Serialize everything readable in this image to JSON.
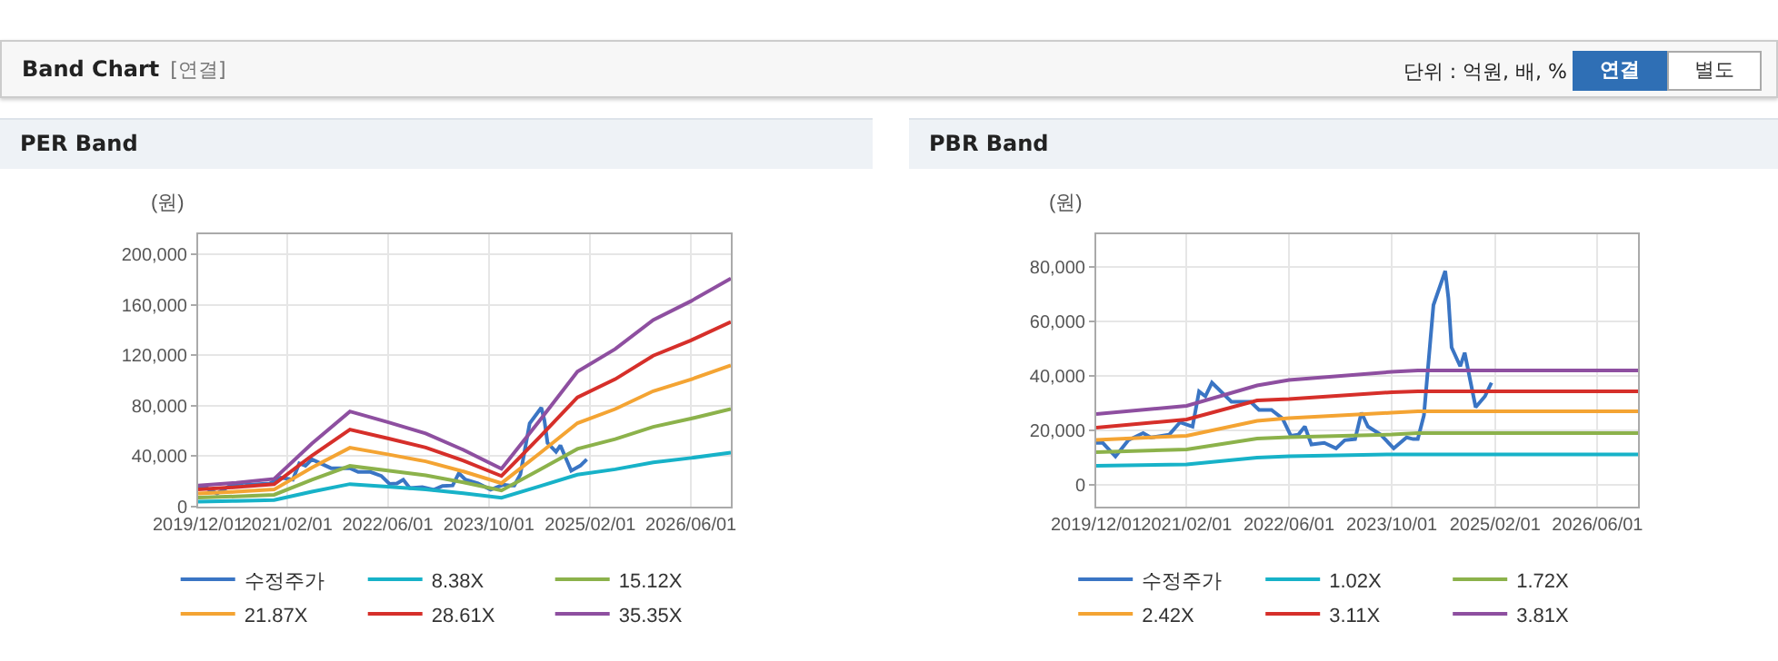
{
  "chart_data": [
    {
      "type": "line",
      "title": "PER Band",
      "ylabel": "(원)",
      "annotations": [
        "Band Chart",
        "[연결]",
        "단위 : 억원, 배, %",
        "연결",
        "별도"
      ],
      "xlim": [
        "2019-12-01",
        "2026-12-10"
      ],
      "xticks": [
        {
          "value": "2019-12-01",
          "label": "2019/12/01"
        },
        {
          "value": "2021-02-01",
          "label": "2021/02/01"
        },
        {
          "value": "2022-06-01",
          "label": "2022/06/01"
        },
        {
          "value": "2023-10-01",
          "label": "2023/10/01"
        },
        {
          "value": "2025-02-01",
          "label": "2025/02/01"
        },
        {
          "value": "2026-06-01",
          "label": "2026/06/01"
        }
      ],
      "ylim": [
        0,
        216000
      ],
      "yticks": [
        {
          "value": 0,
          "label": "0"
        },
        {
          "value": 40000,
          "label": "40,000"
        },
        {
          "value": 80000,
          "label": "80,000"
        },
        {
          "value": 120000,
          "label": "120,000"
        },
        {
          "value": 160000,
          "label": "160,000"
        },
        {
          "value": 200000,
          "label": "200,000"
        }
      ],
      "grid": true,
      "legend": "bottom",
      "x": [
        "2019-12-01",
        "2020-06-01",
        "2020-12-01",
        "2021-06-01",
        "2021-12-01",
        "2022-06-01",
        "2022-12-01",
        "2023-06-01",
        "2023-12-01",
        "2024-06-01",
        "2024-12-01",
        "2025-06-01",
        "2025-12-01",
        "2026-06-01",
        "2026-12-10"
      ],
      "series": [
        {
          "name": "수정주가",
          "color": "#3a75c4",
          "x": [
            "2019-12-01",
            "2020-01-01",
            "2020-03-01",
            "2020-05-01",
            "2020-07-10",
            "2020-08-15",
            "2020-11-10",
            "2021-01-01",
            "2021-03-01",
            "2021-04-01",
            "2021-05-01",
            "2021-06-01",
            "2021-09-01",
            "2021-12-01",
            "2022-01-10",
            "2022-03-10",
            "2022-05-01",
            "2022-06-10",
            "2022-07-15",
            "2022-08-15",
            "2022-09-15",
            "2022-11-15",
            "2023-01-10",
            "2023-02-20",
            "2023-04-10",
            "2023-05-10",
            "2023-06-10",
            "2023-08-10",
            "2023-10-10",
            "2023-12-10",
            "2024-01-10",
            "2024-02-01",
            "2024-03-01",
            "2024-04-01",
            "2024-04-15",
            "2024-06-10",
            "2024-06-25",
            "2024-07-10",
            "2024-08-20",
            "2024-09-10",
            "2024-11-01",
            "2024-12-15",
            "2025-01-15"
          ],
          "values": [
            15400,
            15400,
            10400,
            16400,
            19000,
            17400,
            18400,
            23000,
            21400,
            34300,
            32500,
            37500,
            30500,
            30500,
            27500,
            27500,
            24400,
            18000,
            18400,
            21400,
            14800,
            15400,
            13400,
            16400,
            16800,
            26500,
            21400,
            18400,
            13400,
            17400,
            16800,
            16800,
            25500,
            53500,
            66000,
            78500,
            68500,
            50500,
            43500,
            48500,
            28500,
            32500,
            37500
          ]
        },
        {
          "name": "8.38X",
          "color": "#17b2c8",
          "values": [
            4000,
            4500,
            5200,
            11900,
            17900,
            15900,
            13700,
            10700,
            7100,
            16100,
            25400,
            29600,
            35100,
            38600,
            42900
          ]
        },
        {
          "name": "15.12X",
          "color": "#8cb24b",
          "values": [
            7200,
            8100,
            9400,
            21400,
            32300,
            28700,
            24800,
            19300,
            12800,
            29100,
            45800,
            53500,
            63300,
            69800,
            77500
          ]
        },
        {
          "name": "21.87X",
          "color": "#f4a433",
          "values": [
            10400,
            11800,
            13600,
            31000,
            46700,
            41500,
            35900,
            27900,
            18600,
            42100,
            66200,
            77400,
            91600,
            100900,
            112000
          ]
        },
        {
          "name": "28.61X",
          "color": "#d62f2a",
          "values": [
            13600,
            15400,
            17800,
            40500,
            61100,
            54200,
            46900,
            36400,
            24300,
            55000,
            86600,
            101100,
            119700,
            131900,
            146400
          ]
        },
        {
          "name": "35.35X",
          "color": "#8e4fa0",
          "values": [
            16800,
            19000,
            22000,
            50000,
            75500,
            67000,
            58000,
            45000,
            30000,
            68000,
            107000,
            125000,
            148000,
            163000,
            181000
          ]
        }
      ]
    },
    {
      "type": "line",
      "title": "PBR Band",
      "ylabel": "(원)",
      "xlim": [
        "2019-12-01",
        "2026-12-10"
      ],
      "xticks": [
        {
          "value": "2019-12-01",
          "label": "2019/12/01"
        },
        {
          "value": "2021-02-01",
          "label": "2021/02/01"
        },
        {
          "value": "2022-06-01",
          "label": "2022/06/01"
        },
        {
          "value": "2023-10-01",
          "label": "2023/10/01"
        },
        {
          "value": "2025-02-01",
          "label": "2025/02/01"
        },
        {
          "value": "2026-06-01",
          "label": "2026/06/01"
        }
      ],
      "ylim": [
        -8000,
        92000
      ],
      "yticks": [
        {
          "value": 0,
          "label": "0"
        },
        {
          "value": 20000,
          "label": "20,000"
        },
        {
          "value": 40000,
          "label": "40,000"
        },
        {
          "value": 60000,
          "label": "60,000"
        },
        {
          "value": 80000,
          "label": "80,000"
        }
      ],
      "grid": true,
      "legend": "bottom",
      "x": [
        "2019-12-01",
        "2021-02-01",
        "2022-01-01",
        "2022-06-01",
        "2023-10-01",
        "2024-02-01",
        "2026-12-10"
      ],
      "series": [
        {
          "name": "수정주가",
          "color": "#3a75c4",
          "x": [
            "2019-12-01",
            "2020-01-01",
            "2020-03-01",
            "2020-05-01",
            "2020-07-10",
            "2020-08-15",
            "2020-11-10",
            "2021-01-01",
            "2021-03-01",
            "2021-04-01",
            "2021-05-01",
            "2021-06-01",
            "2021-09-01",
            "2021-12-01",
            "2022-01-10",
            "2022-03-10",
            "2022-05-01",
            "2022-06-10",
            "2022-07-15",
            "2022-08-15",
            "2022-09-15",
            "2022-11-15",
            "2023-01-10",
            "2023-02-20",
            "2023-04-10",
            "2023-05-10",
            "2023-06-10",
            "2023-08-10",
            "2023-10-10",
            "2023-12-10",
            "2024-01-10",
            "2024-02-01",
            "2024-03-01",
            "2024-04-01",
            "2024-04-15",
            "2024-06-10",
            "2024-06-25",
            "2024-07-10",
            "2024-08-20",
            "2024-09-10",
            "2024-11-01",
            "2024-12-15",
            "2025-01-15"
          ],
          "values": [
            15400,
            15400,
            10400,
            16400,
            19000,
            17400,
            18400,
            23000,
            21400,
            34300,
            32500,
            37500,
            30500,
            30500,
            27500,
            27500,
            24400,
            18000,
            18400,
            21400,
            14800,
            15400,
            13400,
            16400,
            16800,
            26500,
            21400,
            18400,
            13400,
            17400,
            16800,
            16800,
            25500,
            53500,
            66000,
            78500,
            68500,
            50500,
            43500,
            48500,
            28500,
            32500,
            37500
          ]
        },
        {
          "name": "1.02X",
          "color": "#17b2c8",
          "values": [
            7000,
            7500,
            10000,
            10500,
            11200,
            11200,
            11200
          ]
        },
        {
          "name": "1.72X",
          "color": "#8cb24b",
          "values": [
            12000,
            13000,
            17000,
            17500,
            18500,
            19000,
            19000
          ]
        },
        {
          "name": "2.42X",
          "color": "#f4a433",
          "values": [
            16500,
            18000,
            23500,
            24500,
            26500,
            27000,
            27000
          ]
        },
        {
          "name": "3.11X",
          "color": "#d62f2a",
          "values": [
            21000,
            24000,
            31000,
            31500,
            34000,
            34300,
            34300
          ]
        },
        {
          "name": "3.81X",
          "color": "#8e4fa0",
          "values": [
            26000,
            29000,
            36500,
            38500,
            41500,
            42000,
            42000
          ]
        }
      ]
    }
  ]
}
